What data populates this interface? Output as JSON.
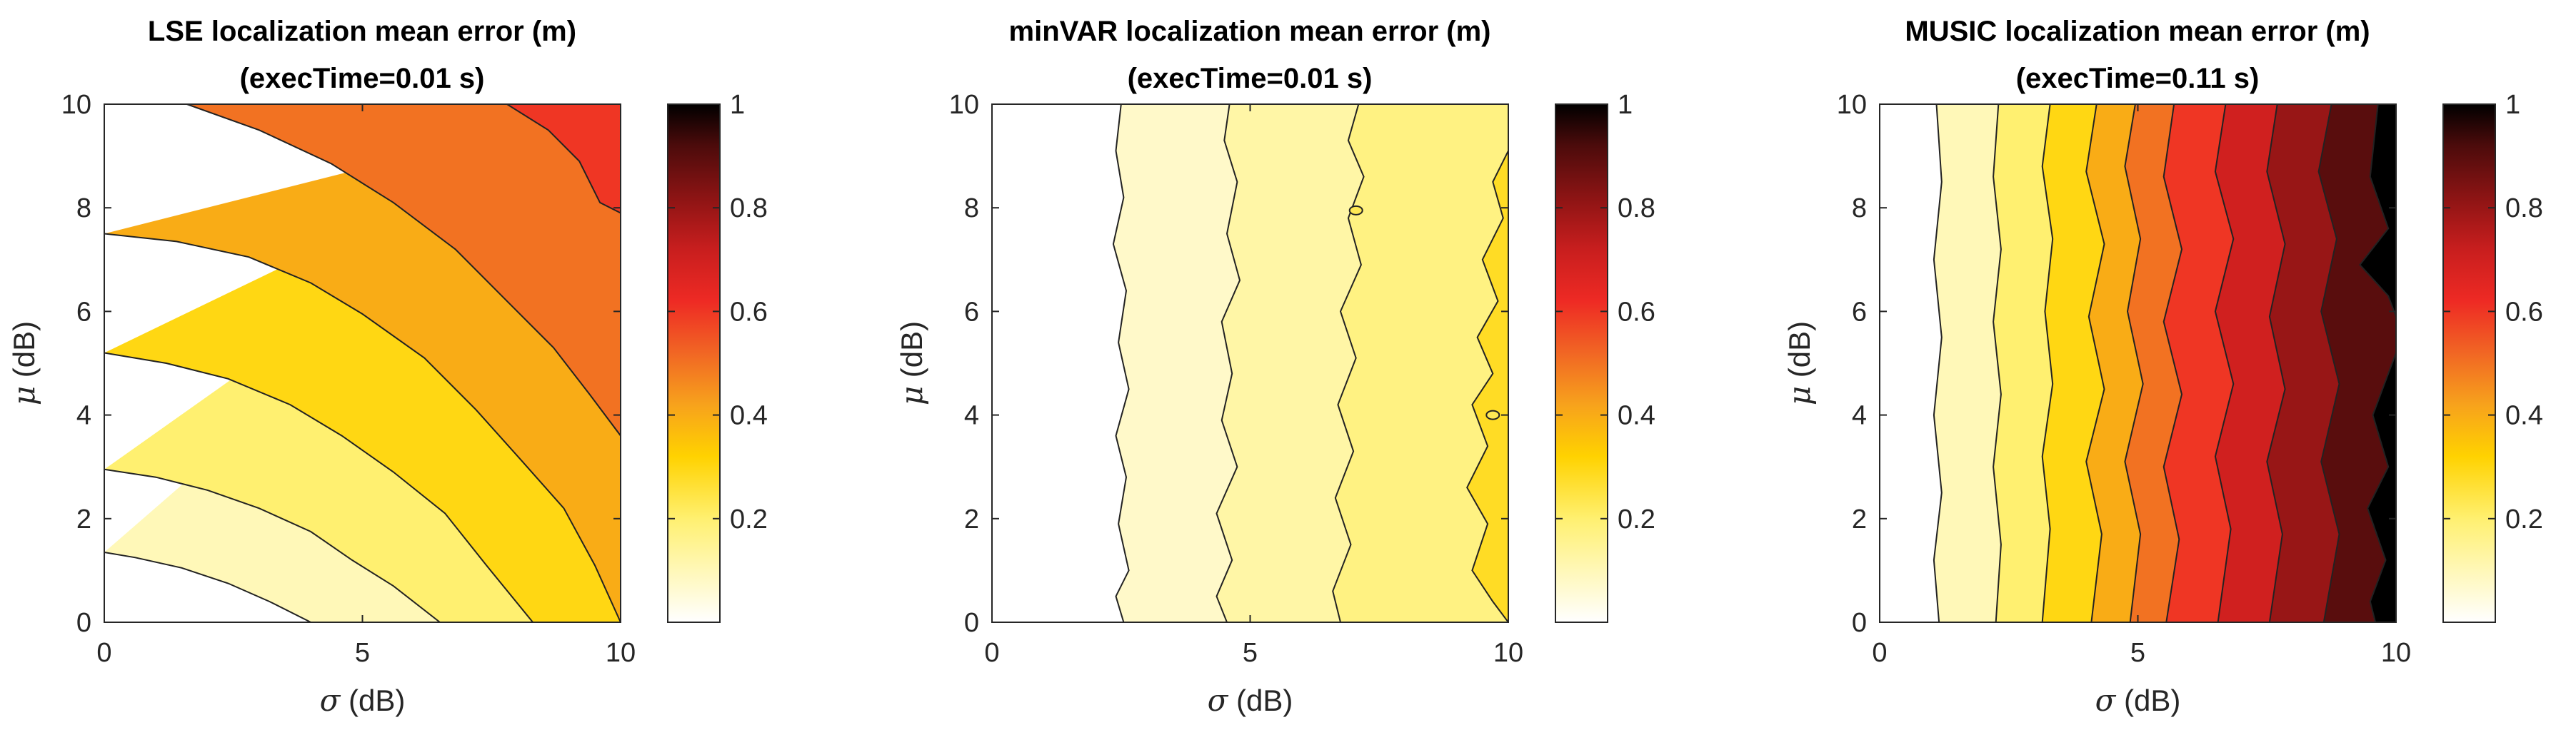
{
  "chart_data": [
    {
      "type": "contourf",
      "title": [
        "LSE localization mean error (m)",
        "(execTime=0.01 s)"
      ],
      "xlabel": {
        "symbol": "σ",
        "unit": "(dB)"
      },
      "ylabel": {
        "symbol": "μ",
        "unit": "(dB)"
      },
      "xlim": [
        0,
        10
      ],
      "ylim": [
        0,
        10
      ],
      "xticks": [
        "0",
        "5",
        "10"
      ],
      "yticks": [
        "0",
        "2",
        "4",
        "6",
        "8",
        "10"
      ],
      "colorbar": {
        "range": [
          0,
          1
        ],
        "ticks": [
          "0.2",
          "0.4",
          "0.6",
          "0.8",
          "1"
        ],
        "colormap": "hot (reversed)"
      },
      "levels": [
        0.05,
        0.15,
        0.25,
        0.35,
        0.45,
        0.55,
        0.65
      ],
      "contours": [
        {
          "level": 0.05,
          "points": [
            [
              0,
              1.35
            ],
            [
              0.6,
              1.25
            ],
            [
              1.5,
              1.05
            ],
            [
              2.4,
              0.75
            ],
            [
              3.2,
              0.4
            ],
            [
              4.0,
              0
            ]
          ]
        },
        {
          "level": 0.15,
          "points": [
            [
              0,
              2.95
            ],
            [
              1.0,
              2.8
            ],
            [
              2.0,
              2.55
            ],
            [
              3.0,
              2.2
            ],
            [
              4.0,
              1.75
            ],
            [
              4.8,
              1.2
            ],
            [
              5.6,
              0.7
            ],
            [
              6.5,
              0
            ]
          ]
        },
        {
          "level": 0.25,
          "points": [
            [
              0,
              5.2
            ],
            [
              1.2,
              5.0
            ],
            [
              2.4,
              4.7
            ],
            [
              3.6,
              4.2
            ],
            [
              4.6,
              3.6
            ],
            [
              5.6,
              2.9
            ],
            [
              6.6,
              2.1
            ],
            [
              7.4,
              1.1
            ],
            [
              8.3,
              0
            ]
          ]
        },
        {
          "level": 0.35,
          "points": [
            [
              0,
              7.5
            ],
            [
              1.4,
              7.35
            ],
            [
              2.8,
              7.05
            ],
            [
              4.0,
              6.55
            ],
            [
              5.0,
              5.95
            ],
            [
              6.2,
              5.1
            ],
            [
              7.2,
              4.1
            ],
            [
              8.1,
              3.1
            ],
            [
              8.9,
              2.2
            ],
            [
              9.5,
              1.1
            ],
            [
              10,
              0
            ]
          ]
        },
        {
          "level": 0.45,
          "points": [
            [
              1.6,
              10
            ],
            [
              3.0,
              9.5
            ],
            [
              4.4,
              8.85
            ],
            [
              5.6,
              8.1
            ],
            [
              6.8,
              7.2
            ],
            [
              7.8,
              6.2
            ],
            [
              8.7,
              5.3
            ],
            [
              9.4,
              4.4
            ],
            [
              10,
              3.6
            ]
          ]
        },
        {
          "level": 0.55,
          "points": [
            [
              7.8,
              10
            ],
            [
              8.6,
              9.5
            ],
            [
              9.2,
              8.9
            ],
            [
              9.6,
              8.1
            ],
            [
              10,
              7.9
            ]
          ]
        }
      ]
    },
    {
      "type": "contourf",
      "title": [
        "minVAR localization mean error (m)",
        "(execTime=0.01 s)"
      ],
      "xlabel": {
        "symbol": "σ",
        "unit": "(dB)"
      },
      "ylabel": {
        "symbol": "μ",
        "unit": "(dB)"
      },
      "xlim": [
        0,
        10
      ],
      "ylim": [
        0,
        10
      ],
      "xticks": [
        "0",
        "5",
        "10"
      ],
      "yticks": [
        "0",
        "2",
        "4",
        "6",
        "8",
        "10"
      ],
      "colorbar": {
        "range": [
          0,
          1
        ],
        "ticks": [
          "0.2",
          "0.4",
          "0.6",
          "0.8",
          "1"
        ],
        "colormap": "hot (reversed)"
      },
      "levels": [
        0.05,
        0.1,
        0.15,
        0.2
      ],
      "contours": [
        {
          "level": 0.05,
          "points": [
            [
              2.5,
              10
            ],
            [
              2.4,
              9.1
            ],
            [
              2.55,
              8.2
            ],
            [
              2.35,
              7.3
            ],
            [
              2.6,
              6.4
            ],
            [
              2.45,
              5.4
            ],
            [
              2.65,
              4.5
            ],
            [
              2.4,
              3.6
            ],
            [
              2.6,
              2.8
            ],
            [
              2.45,
              1.9
            ],
            [
              2.65,
              1.0
            ],
            [
              2.4,
              0.5
            ],
            [
              2.55,
              0
            ]
          ]
        },
        {
          "level": 0.1,
          "points": [
            [
              4.6,
              10
            ],
            [
              4.5,
              9.3
            ],
            [
              4.75,
              8.5
            ],
            [
              4.55,
              7.5
            ],
            [
              4.8,
              6.6
            ],
            [
              4.45,
              5.8
            ],
            [
              4.65,
              4.8
            ],
            [
              4.45,
              3.9
            ],
            [
              4.75,
              3.0
            ],
            [
              4.35,
              2.1
            ],
            [
              4.65,
              1.2
            ],
            [
              4.35,
              0.5
            ],
            [
              4.55,
              0
            ]
          ]
        },
        {
          "level": 0.15,
          "points": [
            [
              7.1,
              10
            ],
            [
              6.9,
              9.3
            ],
            [
              7.2,
              8.6
            ],
            [
              6.9,
              7.8
            ],
            [
              7.15,
              6.9
            ],
            [
              6.75,
              6.0
            ],
            [
              7.05,
              5.1
            ],
            [
              6.7,
              4.2
            ],
            [
              7.0,
              3.3
            ],
            [
              6.65,
              2.4
            ],
            [
              6.95,
              1.5
            ],
            [
              6.6,
              0.6
            ],
            [
              6.75,
              0
            ]
          ]
        },
        {
          "level": 0.2,
          "points": [
            [
              10,
              9.1
            ],
            [
              9.7,
              8.5
            ],
            [
              9.9,
              7.8
            ],
            [
              9.5,
              7.0
            ],
            [
              9.8,
              6.2
            ],
            [
              9.4,
              5.5
            ],
            [
              9.7,
              4.8
            ],
            [
              9.3,
              4.2
            ],
            [
              9.6,
              3.4
            ],
            [
              9.2,
              2.6
            ],
            [
              9.6,
              1.9
            ],
            [
              9.3,
              1.0
            ],
            [
              9.7,
              0.4
            ],
            [
              10,
              0
            ]
          ]
        }
      ],
      "islands": [
        {
          "level": 0.2,
          "center": [
            7.05,
            7.95
          ]
        },
        {
          "level": 0.2,
          "center": [
            9.7,
            4.0
          ]
        }
      ]
    },
    {
      "type": "contourf",
      "title": [
        "MUSIC localization mean error (m)",
        "(execTime=0.11 s)"
      ],
      "xlabel": {
        "symbol": "σ",
        "unit": "(dB)"
      },
      "ylabel": {
        "symbol": "μ",
        "unit": "(dB)"
      },
      "xlim": [
        0,
        10
      ],
      "ylim": [
        0,
        10
      ],
      "xticks": [
        "0",
        "5",
        "10"
      ],
      "yticks": [
        "0",
        "2",
        "4",
        "6",
        "8",
        "10"
      ],
      "colorbar": {
        "range": [
          0,
          1
        ],
        "ticks": [
          "0.2",
          "0.4",
          "0.6",
          "0.8",
          "1"
        ],
        "colormap": "hot (reversed)"
      },
      "levels": [
        0.05,
        0.15,
        0.25,
        0.35,
        0.45,
        0.55,
        0.65,
        0.75,
        0.85,
        0.95
      ],
      "contours": [
        {
          "level": 0.05,
          "points": [
            [
              1.1,
              10
            ],
            [
              1.2,
              8.5
            ],
            [
              1.05,
              7.0
            ],
            [
              1.2,
              5.5
            ],
            [
              1.05,
              4.0
            ],
            [
              1.2,
              2.5
            ],
            [
              1.05,
              1.2
            ],
            [
              1.15,
              0
            ]
          ]
        },
        {
          "level": 0.15,
          "points": [
            [
              2.3,
              10
            ],
            [
              2.2,
              8.6
            ],
            [
              2.35,
              7.2
            ],
            [
              2.2,
              5.8
            ],
            [
              2.35,
              4.4
            ],
            [
              2.2,
              3.0
            ],
            [
              2.35,
              1.5
            ],
            [
              2.25,
              0
            ]
          ]
        },
        {
          "level": 0.25,
          "points": [
            [
              3.3,
              10
            ],
            [
              3.15,
              8.8
            ],
            [
              3.35,
              7.4
            ],
            [
              3.2,
              6.0
            ],
            [
              3.35,
              4.6
            ],
            [
              3.15,
              3.2
            ],
            [
              3.3,
              1.8
            ],
            [
              3.15,
              0
            ]
          ]
        },
        {
          "level": 0.35,
          "points": [
            [
              4.2,
              10
            ],
            [
              4.0,
              8.7
            ],
            [
              4.35,
              7.3
            ],
            [
              4.05,
              5.9
            ],
            [
              4.35,
              4.5
            ],
            [
              4.0,
              3.1
            ],
            [
              4.3,
              1.7
            ],
            [
              4.1,
              0
            ]
          ]
        },
        {
          "level": 0.45,
          "points": [
            [
              4.95,
              10
            ],
            [
              4.75,
              8.8
            ],
            [
              5.05,
              7.4
            ],
            [
              4.8,
              6.0
            ],
            [
              5.1,
              4.6
            ],
            [
              4.75,
              3.1
            ],
            [
              5.05,
              1.7
            ],
            [
              4.85,
              0
            ]
          ]
        },
        {
          "level": 0.55,
          "points": [
            [
              5.7,
              10
            ],
            [
              5.5,
              8.6
            ],
            [
              5.85,
              7.2
            ],
            [
              5.5,
              5.8
            ],
            [
              5.85,
              4.4
            ],
            [
              5.5,
              3.0
            ],
            [
              5.8,
              1.6
            ],
            [
              5.55,
              0
            ]
          ]
        },
        {
          "level": 0.65,
          "points": [
            [
              6.7,
              10
            ],
            [
              6.5,
              8.7
            ],
            [
              6.85,
              7.4
            ],
            [
              6.5,
              6.0
            ],
            [
              6.85,
              4.6
            ],
            [
              6.5,
              3.2
            ],
            [
              6.8,
              1.8
            ],
            [
              6.55,
              0
            ]
          ]
        },
        {
          "level": 0.75,
          "points": [
            [
              7.7,
              10
            ],
            [
              7.5,
              8.7
            ],
            [
              7.85,
              7.3
            ],
            [
              7.55,
              5.9
            ],
            [
              7.85,
              4.5
            ],
            [
              7.5,
              3.1
            ],
            [
              7.8,
              1.7
            ],
            [
              7.55,
              0
            ]
          ]
        },
        {
          "level": 0.85,
          "points": [
            [
              8.75,
              10
            ],
            [
              8.5,
              8.7
            ],
            [
              8.85,
              7.4
            ],
            [
              8.55,
              6.0
            ],
            [
              8.9,
              4.6
            ],
            [
              8.55,
              3.1
            ],
            [
              8.9,
              1.7
            ],
            [
              8.6,
              0
            ]
          ]
        },
        {
          "level": 0.95,
          "points": [
            [
              9.65,
              10
            ],
            [
              9.5,
              8.6
            ],
            [
              9.85,
              7.6
            ],
            [
              9.3,
              6.9
            ],
            [
              9.85,
              6.3
            ],
            [
              10,
              5.9
            ]
          ]
        },
        {
          "level": 0.95,
          "points": [
            [
              10,
              5.2
            ],
            [
              9.55,
              4.0
            ],
            [
              9.85,
              3.0
            ],
            [
              9.45,
              2.2
            ],
            [
              9.8,
              1.2
            ],
            [
              9.5,
              0.4
            ],
            [
              9.6,
              0
            ]
          ]
        }
      ]
    }
  ]
}
